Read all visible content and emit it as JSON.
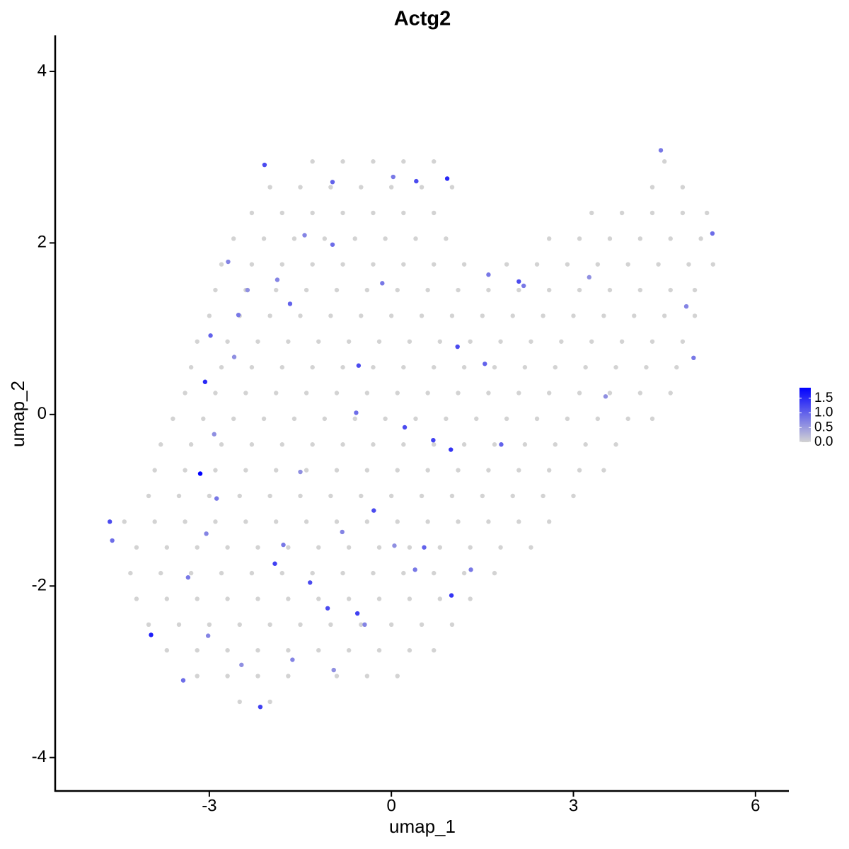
{
  "chart_data": {
    "type": "scatter",
    "title": "Actg2",
    "x_label": "umap_1",
    "y_label": "umap_2",
    "xlim": [
      -5.54,
      6.55
    ],
    "ylim": [
      -4.39,
      4.42
    ],
    "xticks": [
      -3,
      0,
      3,
      6
    ],
    "yticks": [
      -4,
      -2,
      0,
      2,
      4
    ],
    "low_color": "#d3d3d3",
    "high_color": "#0000ff",
    "clim": [
      0,
      1.86
    ],
    "cticks": [
      {
        "value": 0,
        "label": "0.0"
      },
      {
        "value": 0.5,
        "label": "0.5"
      },
      {
        "value": 1,
        "label": "1.0"
      },
      {
        "value": 1.5,
        "label": "1.5"
      }
    ],
    "x": [
      -1.3,
      -0.8,
      -0.3,
      0.2,
      0.7,
      4.5,
      -2.0,
      -1.5,
      -1.0,
      -0.5,
      0.0,
      0.5,
      1.0,
      4.3,
      4.8,
      -2.3,
      -1.8,
      -1.3,
      -0.8,
      -0.3,
      0.2,
      0.7,
      3.3,
      3.8,
      4.3,
      4.8,
      5.2,
      -2.6,
      -2.1,
      -1.6,
      -1.1,
      -0.6,
      -0.1,
      0.4,
      0.9,
      2.6,
      3.1,
      3.6,
      4.1,
      4.6,
      5.1,
      -2.8,
      -2.3,
      -1.8,
      -1.3,
      -0.8,
      -0.3,
      0.2,
      0.7,
      1.2,
      1.9,
      2.4,
      2.9,
      3.4,
      3.9,
      4.4,
      4.9,
      5.3,
      -2.9,
      -2.4,
      -1.9,
      -1.4,
      -0.9,
      -0.4,
      0.1,
      0.6,
      1.1,
      1.6,
      2.1,
      2.6,
      3.1,
      3.6,
      4.1,
      4.6,
      5.0,
      -3.0,
      -2.5,
      -2.0,
      -1.5,
      -1.0,
      -0.5,
      0.0,
      0.5,
      1.0,
      1.5,
      2.0,
      2.5,
      3.0,
      3.5,
      4.0,
      4.5,
      5.0,
      -3.2,
      -2.7,
      -2.2,
      -1.7,
      -1.2,
      -0.7,
      -0.2,
      0.3,
      0.8,
      1.3,
      1.8,
      2.3,
      2.8,
      3.3,
      3.8,
      4.3,
      4.8,
      -3.3,
      -2.8,
      -2.3,
      -1.8,
      -1.3,
      -0.8,
      -0.3,
      0.2,
      0.7,
      1.2,
      1.7,
      2.2,
      2.7,
      3.2,
      3.7,
      4.2,
      4.7,
      -3.4,
      -2.9,
      -2.4,
      -1.9,
      -1.4,
      -0.9,
      -0.4,
      0.1,
      0.6,
      1.1,
      1.6,
      2.1,
      2.6,
      3.1,
      3.6,
      4.1,
      4.6,
      -3.6,
      -3.1,
      -2.6,
      -2.1,
      -1.6,
      -1.1,
      -0.6,
      -0.1,
      0.4,
      0.9,
      1.4,
      1.9,
      2.4,
      2.9,
      3.4,
      3.9,
      4.3,
      -3.8,
      -3.3,
      -2.8,
      -2.3,
      -1.8,
      -1.3,
      -0.8,
      -0.3,
      0.2,
      0.7,
      1.2,
      1.7,
      2.2,
      2.7,
      3.2,
      3.7,
      -3.9,
      -3.4,
      -2.9,
      -2.4,
      -1.9,
      -1.4,
      -0.9,
      -0.4,
      0.1,
      0.6,
      1.1,
      1.6,
      2.1,
      2.6,
      3.1,
      3.5,
      -4.0,
      -3.5,
      -3.0,
      -2.5,
      -2.0,
      -1.5,
      -1.0,
      -0.5,
      0.0,
      0.5,
      1.0,
      1.5,
      2.0,
      2.5,
      3.0,
      -4.4,
      -3.9,
      -3.4,
      -2.9,
      -2.4,
      -1.9,
      -1.4,
      -0.9,
      -0.4,
      0.1,
      0.6,
      1.1,
      1.6,
      2.1,
      2.6,
      -4.2,
      -3.7,
      -3.2,
      -2.7,
      -2.2,
      -1.7,
      -1.2,
      -0.7,
      -0.2,
      0.3,
      0.8,
      1.3,
      1.8,
      2.3,
      -4.3,
      -3.8,
      -3.3,
      -2.8,
      -2.3,
      -1.8,
      -1.3,
      -0.8,
      -0.3,
      0.2,
      0.7,
      1.2,
      1.7,
      -4.2,
      -3.7,
      -3.2,
      -2.7,
      -2.2,
      -1.7,
      -1.2,
      -0.7,
      -0.2,
      0.3,
      0.8,
      1.3,
      -4.0,
      -3.5,
      -3.0,
      -2.5,
      -2.0,
      -1.5,
      -1.0,
      -0.5,
      0.0,
      0.5,
      1.0,
      -3.7,
      -3.2,
      -2.7,
      -2.2,
      -1.7,
      -1.2,
      -0.7,
      -0.2,
      0.3,
      0.7,
      -3.2,
      -2.7,
      -2.2,
      -1.7,
      -0.9,
      -0.4,
      0.1,
      -2.5,
      -2.0,
      -2.09,
      -0.97,
      0.03,
      0.41,
      0.92,
      -1.43,
      -0.97,
      -2.69,
      -1.88,
      -2.37,
      -0.15,
      -1.67,
      -2.52,
      -2.98,
      1.09,
      -2.59,
      -0.54,
      1.54,
      -3.07,
      1.6,
      2.1,
      2.18,
      3.26,
      4.86,
      5.29,
      4.44,
      4.98,
      3.53,
      0.22,
      -0.58,
      0.69,
      0.98,
      1.81,
      -2.92,
      -3.15,
      -1.5,
      -2.88,
      -0.29,
      -4.64,
      -4.6,
      -3.05,
      -0.81,
      -1.78,
      0.05,
      0.54,
      -1.92,
      0.39,
      1.31,
      -3.35,
      -1.34,
      0.99,
      -1.05,
      -0.56,
      -0.44,
      -3.96,
      -3.02,
      -1.63,
      -2.47,
      -0.95,
      -3.43,
      -2.16
    ],
    "y": [
      2.95,
      2.95,
      2.95,
      2.95,
      2.95,
      2.95,
      2.65,
      2.65,
      2.65,
      2.65,
      2.65,
      2.65,
      2.65,
      2.65,
      2.65,
      2.35,
      2.35,
      2.35,
      2.35,
      2.35,
      2.35,
      2.35,
      2.35,
      2.35,
      2.35,
      2.35,
      2.35,
      2.05,
      2.05,
      2.05,
      2.05,
      2.05,
      2.05,
      2.05,
      2.05,
      2.05,
      2.05,
      2.05,
      2.05,
      2.05,
      2.05,
      1.75,
      1.75,
      1.75,
      1.75,
      1.75,
      1.75,
      1.75,
      1.75,
      1.75,
      1.75,
      1.75,
      1.75,
      1.75,
      1.75,
      1.75,
      1.75,
      1.75,
      1.45,
      1.45,
      1.45,
      1.45,
      1.45,
      1.45,
      1.45,
      1.45,
      1.45,
      1.45,
      1.45,
      1.45,
      1.45,
      1.45,
      1.45,
      1.45,
      1.45,
      1.15,
      1.15,
      1.15,
      1.15,
      1.15,
      1.15,
      1.15,
      1.15,
      1.15,
      1.15,
      1.15,
      1.15,
      1.15,
      1.15,
      1.15,
      1.15,
      1.15,
      0.85,
      0.85,
      0.85,
      0.85,
      0.85,
      0.85,
      0.85,
      0.85,
      0.85,
      0.85,
      0.85,
      0.85,
      0.85,
      0.85,
      0.85,
      0.85,
      0.85,
      0.55,
      0.55,
      0.55,
      0.55,
      0.55,
      0.55,
      0.55,
      0.55,
      0.55,
      0.55,
      0.55,
      0.55,
      0.55,
      0.55,
      0.55,
      0.55,
      0.55,
      0.25,
      0.25,
      0.25,
      0.25,
      0.25,
      0.25,
      0.25,
      0.25,
      0.25,
      0.25,
      0.25,
      0.25,
      0.25,
      0.25,
      0.25,
      0.25,
      0.25,
      -0.05,
      -0.05,
      -0.05,
      -0.05,
      -0.05,
      -0.05,
      -0.05,
      -0.05,
      -0.05,
      -0.05,
      -0.05,
      -0.05,
      -0.05,
      -0.05,
      -0.05,
      -0.05,
      -0.05,
      -0.35,
      -0.35,
      -0.35,
      -0.35,
      -0.35,
      -0.35,
      -0.35,
      -0.35,
      -0.35,
      -0.35,
      -0.35,
      -0.35,
      -0.35,
      -0.35,
      -0.35,
      -0.35,
      -0.65,
      -0.65,
      -0.65,
      -0.65,
      -0.65,
      -0.65,
      -0.65,
      -0.65,
      -0.65,
      -0.65,
      -0.65,
      -0.65,
      -0.65,
      -0.65,
      -0.65,
      -0.65,
      -0.95,
      -0.95,
      -0.95,
      -0.95,
      -0.95,
      -0.95,
      -0.95,
      -0.95,
      -0.95,
      -0.95,
      -0.95,
      -0.95,
      -0.95,
      -0.95,
      -0.95,
      -1.25,
      -1.25,
      -1.25,
      -1.25,
      -1.25,
      -1.25,
      -1.25,
      -1.25,
      -1.25,
      -1.25,
      -1.25,
      -1.25,
      -1.25,
      -1.25,
      -1.25,
      -1.55,
      -1.55,
      -1.55,
      -1.55,
      -1.55,
      -1.55,
      -1.55,
      -1.55,
      -1.55,
      -1.55,
      -1.55,
      -1.55,
      -1.55,
      -1.55,
      -1.85,
      -1.85,
      -1.85,
      -1.85,
      -1.85,
      -1.85,
      -1.85,
      -1.85,
      -1.85,
      -1.85,
      -1.85,
      -1.85,
      -1.85,
      -2.15,
      -2.15,
      -2.15,
      -2.15,
      -2.15,
      -2.15,
      -2.15,
      -2.15,
      -2.15,
      -2.15,
      -2.15,
      -2.15,
      -2.45,
      -2.45,
      -2.45,
      -2.45,
      -2.45,
      -2.45,
      -2.45,
      -2.45,
      -2.45,
      -2.45,
      -2.45,
      -2.75,
      -2.75,
      -2.75,
      -2.75,
      -2.75,
      -2.75,
      -2.75,
      -2.75,
      -2.75,
      -2.75,
      -3.05,
      -3.05,
      -3.05,
      -3.05,
      -3.05,
      -3.05,
      -3.05,
      -3.35,
      -3.35,
      2.91,
      2.71,
      2.77,
      2.72,
      2.75,
      2.09,
      1.98,
      1.78,
      1.57,
      1.45,
      1.53,
      1.29,
      1.16,
      0.92,
      0.79,
      0.67,
      0.57,
      0.59,
      0.38,
      1.63,
      1.55,
      1.5,
      1.6,
      1.26,
      2.11,
      3.08,
      0.66,
      0.21,
      -0.15,
      0.02,
      -0.3,
      -0.41,
      -0.35,
      -0.23,
      -0.69,
      -0.67,
      -0.98,
      -1.12,
      -1.25,
      -1.47,
      -1.39,
      -1.37,
      -1.52,
      -1.53,
      -1.55,
      -1.74,
      -1.81,
      -1.81,
      -1.9,
      -1.96,
      -2.11,
      -2.26,
      -2.32,
      -2.45,
      -2.57,
      -2.58,
      -2.86,
      -2.92,
      -2.98,
      -3.1,
      -3.41
    ],
    "values": [
      0,
      0,
      0,
      0,
      0,
      0,
      0,
      0,
      0,
      0,
      0,
      0,
      0,
      0,
      0,
      0,
      0,
      0,
      0,
      0,
      0,
      0,
      0,
      0,
      0,
      0,
      0,
      0,
      0,
      0,
      0,
      0,
      0,
      0,
      0,
      0,
      0,
      0,
      0,
      0,
      0,
      0,
      0,
      0,
      0,
      0,
      0,
      0,
      0,
      0,
      0,
      0,
      0,
      0,
      0,
      0,
      0,
      0,
      0,
      0,
      0,
      0,
      0,
      0,
      0,
      0,
      0,
      0,
      0,
      0,
      0,
      0,
      0,
      0,
      0,
      0,
      0,
      0,
      0,
      0,
      0,
      0,
      0,
      0,
      0,
      0,
      0,
      0,
      0,
      0,
      0,
      0,
      0,
      0,
      0,
      0,
      0,
      0,
      0,
      0,
      0,
      0,
      0,
      0,
      0,
      0,
      0,
      0,
      0,
      0,
      0,
      0,
      0,
      0,
      0,
      0,
      0,
      0,
      0,
      0,
      0,
      0,
      0,
      0,
      0,
      0,
      0,
      0,
      0,
      0,
      0,
      0,
      0,
      0,
      0,
      0,
      0,
      0,
      0,
      0,
      0,
      0,
      0,
      0,
      0,
      0,
      0,
      0,
      0,
      0,
      0,
      0,
      0,
      0,
      0,
      0,
      0,
      0,
      0,
      0,
      0,
      0,
      0,
      0,
      0,
      0,
      0,
      0,
      0,
      0,
      0,
      0,
      0,
      0,
      0,
      0,
      0,
      0,
      0,
      0,
      0,
      0,
      0,
      0,
      0,
      0,
      0,
      0,
      0,
      0,
      0,
      0,
      0,
      0,
      0,
      0,
      0,
      0,
      0,
      0,
      0,
      0,
      0,
      0,
      0,
      0,
      0,
      0,
      0,
      0,
      0,
      0,
      0,
      0,
      0,
      0,
      0,
      0,
      0,
      0,
      0,
      0,
      0,
      0,
      0,
      0,
      0,
      0,
      0,
      0,
      0,
      0,
      0,
      0,
      0,
      0,
      0,
      0,
      0,
      0,
      0,
      0,
      0,
      0,
      0,
      0,
      0,
      0,
      0,
      0,
      0,
      0,
      0,
      0,
      0,
      0,
      0,
      0,
      0,
      0,
      0,
      0,
      0,
      0,
      0,
      0,
      0,
      0,
      0,
      0,
      0,
      0,
      0,
      0,
      0,
      0,
      0,
      0,
      0,
      0,
      0,
      0,
      0,
      0,
      0,
      0,
      0,
      0,
      0,
      0,
      0,
      1.2,
      1.0,
      0.8,
      1.2,
      1.5,
      0.7,
      0.9,
      0.7,
      0.7,
      0.6,
      0.8,
      1.0,
      0.8,
      1.0,
      1.2,
      0.6,
      1.2,
      1.0,
      1.5,
      0.8,
      1.2,
      0.8,
      0.6,
      0.7,
      0.9,
      0.8,
      0.8,
      0.6,
      1.2,
      0.9,
      1.3,
      1.4,
      1.0,
      0.6,
      1.86,
      0.6,
      0.8,
      1.2,
      1.2,
      0.9,
      0.7,
      0.7,
      0.8,
      0.6,
      1.0,
      1.3,
      0.8,
      0.8,
      0.8,
      1.2,
      1.4,
      1.2,
      1.3,
      0.7,
      1.6,
      0.7,
      0.7,
      0.6,
      0.6,
      0.9,
      1.3
    ]
  }
}
